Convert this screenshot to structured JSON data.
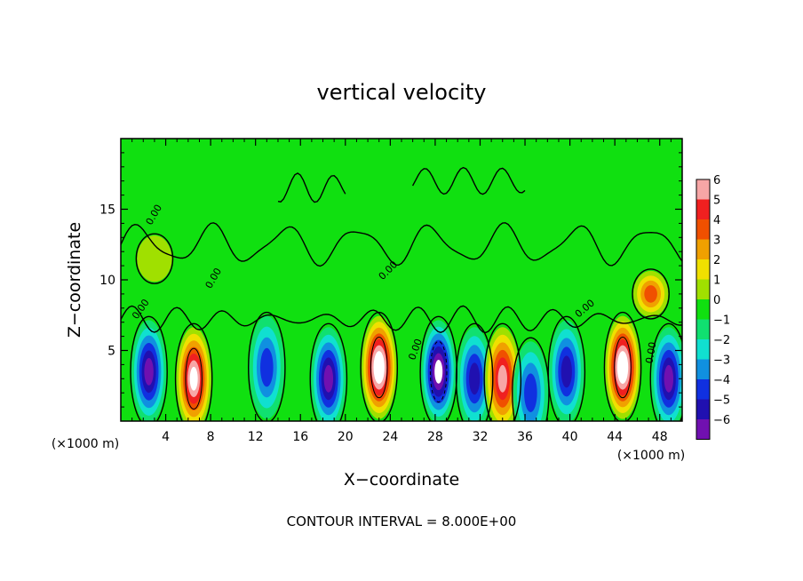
{
  "chart_data": {
    "type": "heatmap",
    "title": "vertical velocity",
    "xlabel": "X−coordinate",
    "ylabel": "Z−coordinate",
    "x_unit": "(×1000 m)",
    "footer": "CONTOUR INTERVAL = 8.000E+00",
    "xlim": [
      0,
      50
    ],
    "ylim": [
      0,
      20
    ],
    "x_ticks": [
      4,
      8,
      12,
      16,
      20,
      24,
      28,
      32,
      36,
      40,
      44,
      48
    ],
    "y_ticks": [
      5,
      10,
      15
    ],
    "colorbar": {
      "levels": [
        6,
        5,
        4,
        3,
        2,
        1,
        0,
        -1,
        -2,
        -3,
        -4,
        -5,
        -6
      ],
      "labels": [
        "6",
        "5",
        "4",
        "3",
        "2",
        "1",
        "0",
        "−1",
        "−2",
        "−3",
        "−4",
        "−5",
        "−6"
      ],
      "colors": [
        "#f7a6a6",
        "#f02020",
        "#f05000",
        "#f0a000",
        "#f0e000",
        "#a0e000",
        "#10e010",
        "#10e070",
        "#10e0d0",
        "#1090e0",
        "#1030e0",
        "#2010b0",
        "#7010b0"
      ],
      "range": [
        -6,
        6
      ]
    },
    "contour_labels": [
      "0.00"
    ],
    "cells": [
      {
        "x": 2.5,
        "z": 3.5,
        "w": -6
      },
      {
        "x": 6.5,
        "z": 3.0,
        "w": 7
      },
      {
        "x": 13.0,
        "z": 3.8,
        "w": -3.5
      },
      {
        "x": 18.5,
        "z": 3.0,
        "w": -6
      },
      {
        "x": 23.0,
        "z": 3.8,
        "w": 8
      },
      {
        "x": 28.3,
        "z": 3.5,
        "w": -7
      },
      {
        "x": 31.5,
        "z": 3.0,
        "w": -5
      },
      {
        "x": 34.0,
        "z": 3.0,
        "w": 6
      },
      {
        "x": 36.5,
        "z": 2.0,
        "w": -4
      },
      {
        "x": 39.7,
        "z": 3.5,
        "w": -5
      },
      {
        "x": 44.7,
        "z": 3.8,
        "w": 8
      },
      {
        "x": 48.8,
        "z": 3.0,
        "w": -6
      },
      {
        "x": 47.2,
        "z": 9.0,
        "w": 4
      },
      {
        "x": 3.0,
        "z": 11.5,
        "w": 1
      }
    ]
  }
}
